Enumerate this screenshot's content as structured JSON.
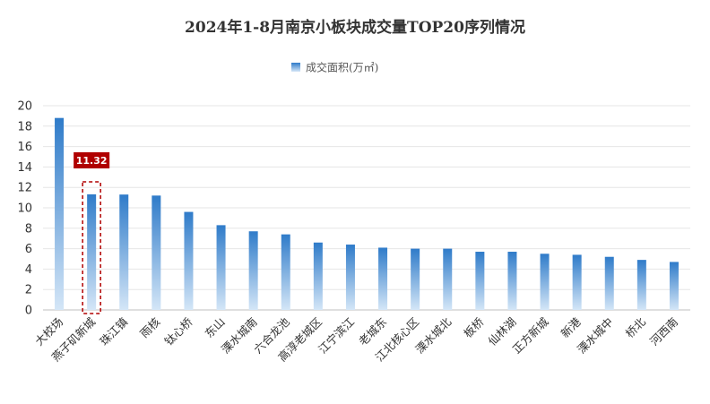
{
  "chart_data": {
    "type": "bar",
    "title": "2024年1-8月南京小板块成交量TOP20序列情况",
    "legend": [
      "成交面积(万㎡)"
    ],
    "legend_position": "top-center",
    "categories": [
      "大校场",
      "燕子矶新城",
      "珠江镇",
      "雨核",
      "钛心桥",
      "东山",
      "溧水城南",
      "六合龙池",
      "高淳老城区",
      "江宁滨江",
      "老城东",
      "江北核心区",
      "溧水城北",
      "板桥",
      "仙林湖",
      "正方新城",
      "新港",
      "溧水城中",
      "桥北",
      "河西南"
    ],
    "series": [
      {
        "name": "成交面积(万㎡)",
        "values": [
          18.8,
          11.32,
          11.3,
          11.2,
          9.6,
          8.3,
          7.7,
          7.4,
          6.6,
          6.4,
          6.1,
          6.0,
          6.0,
          5.7,
          5.7,
          5.5,
          5.4,
          5.2,
          4.9,
          4.7
        ]
      }
    ],
    "y_ticks": [
      "0",
      "2",
      "4",
      "6",
      "8",
      "10",
      "12",
      "14",
      "16",
      "18",
      "20"
    ],
    "ylim": [
      0,
      20
    ],
    "grid": true,
    "highlight": {
      "category": "燕子矶新城",
      "label": "11.32"
    }
  },
  "colors": {
    "bar_top": "#2f7bc9",
    "bar_bottom": "#d4e6f7",
    "highlight": "#b00000",
    "grid": "#e6e6e6"
  }
}
